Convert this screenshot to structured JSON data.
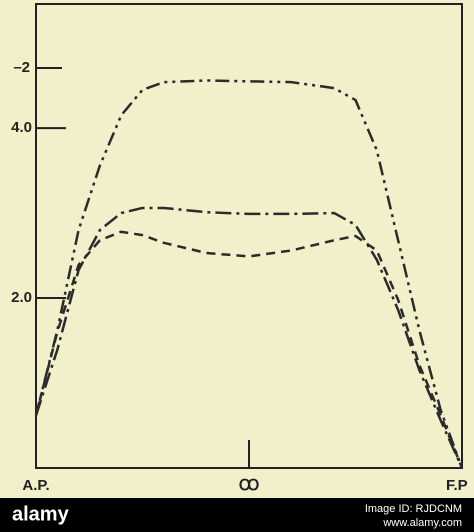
{
  "chart_data": {
    "type": "line",
    "annotations": [
      "–2"
    ],
    "x": [
      0,
      0.05,
      0.1,
      0.15,
      0.2,
      0.25,
      0.3,
      0.4,
      0.5,
      0.6,
      0.7,
      0.75,
      0.8,
      0.85,
      0.9,
      0.95,
      1
    ],
    "series": [
      {
        "color": "#2b2b2b",
        "dash": "14 5 3 5 3 5",
        "values": [
          0.62,
          1.62,
          2.8,
          3.56,
          4.15,
          4.45,
          4.54,
          4.56,
          4.55,
          4.54,
          4.47,
          4.33,
          3.74,
          2.68,
          1.62,
          0.68,
          0
        ]
      },
      {
        "color": "#2b2b2b",
        "dash": "16 5 3 5",
        "values": [
          0.62,
          1.39,
          2.33,
          2.8,
          3.0,
          3.06,
          3.06,
          3.01,
          2.99,
          2.99,
          3.0,
          2.86,
          2.45,
          1.86,
          1.15,
          0.56,
          0
        ]
      },
      {
        "color": "#2b2b2b",
        "dash": "9 6",
        "values": [
          0.62,
          1.6,
          2.39,
          2.68,
          2.78,
          2.74,
          2.65,
          2.53,
          2.49,
          2.56,
          2.68,
          2.73,
          2.56,
          1.98,
          1.21,
          0.62,
          0
        ]
      }
    ],
    "xlim": [
      0,
      1
    ],
    "xticks": [
      {
        "value": 0,
        "label": "A.P."
      },
      {
        "value": 0.5,
        "label": "Ꝏ"
      },
      {
        "value": 1,
        "label": "F.P"
      }
    ],
    "ylim": [
      0,
      5.46
    ],
    "yticks": [
      {
        "value": 2,
        "label": "2.0"
      },
      {
        "value": 4,
        "label": "4.0"
      }
    ]
  },
  "watermark": {
    "brand": "alamy",
    "image_id": "Image ID: RJDCNM",
    "site": "www.alamy.com"
  }
}
